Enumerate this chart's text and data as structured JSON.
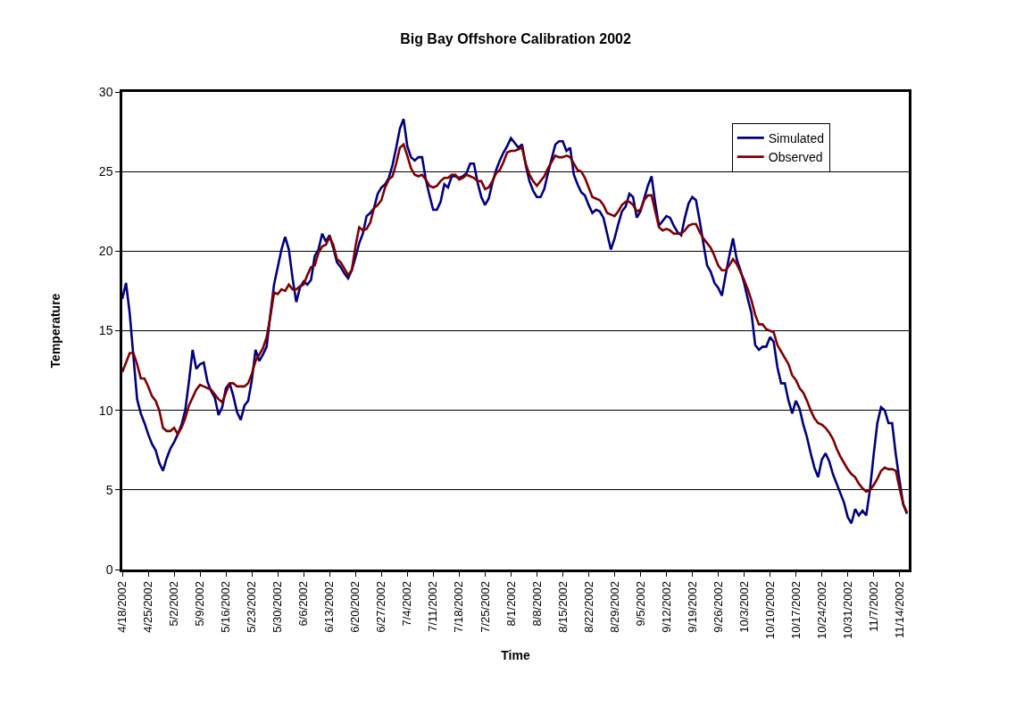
{
  "chart_data": {
    "type": "line",
    "title": "Big Bay Offshore Calibration 2002",
    "xlabel": "Time",
    "ylabel": "Temperature",
    "x": [
      "2002-04-18",
      "2002-04-19",
      "2002-04-20",
      "2002-04-21",
      "2002-04-22",
      "2002-04-23",
      "2002-04-24",
      "2002-04-25",
      "2002-04-26",
      "2002-04-27",
      "2002-04-28",
      "2002-04-29",
      "2002-04-30",
      "2002-05-01",
      "2002-05-02",
      "2002-05-03",
      "2002-05-04",
      "2002-05-05",
      "2002-05-06",
      "2002-05-07",
      "2002-05-08",
      "2002-05-09",
      "2002-05-10",
      "2002-05-11",
      "2002-05-12",
      "2002-05-13",
      "2002-05-14",
      "2002-05-15",
      "2002-05-16",
      "2002-05-17",
      "2002-05-18",
      "2002-05-19",
      "2002-05-20",
      "2002-05-21",
      "2002-05-22",
      "2002-05-23",
      "2002-05-24",
      "2002-05-25",
      "2002-05-26",
      "2002-05-27",
      "2002-05-28",
      "2002-05-29",
      "2002-05-30",
      "2002-05-31",
      "2002-06-01",
      "2002-06-02",
      "2002-06-03",
      "2002-06-04",
      "2002-06-05",
      "2002-06-06",
      "2002-06-07",
      "2002-06-08",
      "2002-06-09",
      "2002-06-10",
      "2002-06-11",
      "2002-06-12",
      "2002-06-13",
      "2002-06-14",
      "2002-06-15",
      "2002-06-16",
      "2002-06-17",
      "2002-06-18",
      "2002-06-19",
      "2002-06-20",
      "2002-06-21",
      "2002-06-22",
      "2002-06-23",
      "2002-06-24",
      "2002-06-25",
      "2002-06-26",
      "2002-06-27",
      "2002-06-28",
      "2002-06-29",
      "2002-06-30",
      "2002-07-01",
      "2002-07-02",
      "2002-07-03",
      "2002-07-04",
      "2002-07-05",
      "2002-07-06",
      "2002-07-07",
      "2002-07-08",
      "2002-07-09",
      "2002-07-10",
      "2002-07-11",
      "2002-07-12",
      "2002-07-13",
      "2002-07-14",
      "2002-07-15",
      "2002-07-16",
      "2002-07-17",
      "2002-07-18",
      "2002-07-19",
      "2002-07-20",
      "2002-07-21",
      "2002-07-22",
      "2002-07-23",
      "2002-07-24",
      "2002-07-25",
      "2002-07-26",
      "2002-07-27",
      "2002-07-28",
      "2002-07-29",
      "2002-07-30",
      "2002-07-31",
      "2002-08-01",
      "2002-08-02",
      "2002-08-03",
      "2002-08-04",
      "2002-08-05",
      "2002-08-06",
      "2002-08-07",
      "2002-08-08",
      "2002-08-09",
      "2002-08-10",
      "2002-08-11",
      "2002-08-12",
      "2002-08-13",
      "2002-08-14",
      "2002-08-15",
      "2002-08-16",
      "2002-08-17",
      "2002-08-18",
      "2002-08-19",
      "2002-08-20",
      "2002-08-21",
      "2002-08-22",
      "2002-08-23",
      "2002-08-24",
      "2002-08-25",
      "2002-08-26",
      "2002-08-27",
      "2002-08-28",
      "2002-08-29",
      "2002-08-30",
      "2002-08-31",
      "2002-09-01",
      "2002-09-02",
      "2002-09-03",
      "2002-09-04",
      "2002-09-05",
      "2002-09-06",
      "2002-09-07",
      "2002-09-08",
      "2002-09-09",
      "2002-09-10",
      "2002-09-11",
      "2002-09-12",
      "2002-09-13",
      "2002-09-14",
      "2002-09-15",
      "2002-09-16",
      "2002-09-17",
      "2002-09-18",
      "2002-09-19",
      "2002-09-20",
      "2002-09-21",
      "2002-09-22",
      "2002-09-23",
      "2002-09-24",
      "2002-09-25",
      "2002-09-26",
      "2002-09-27",
      "2002-09-28",
      "2002-09-29",
      "2002-09-30",
      "2002-10-01",
      "2002-10-02",
      "2002-10-03",
      "2002-10-04",
      "2002-10-05",
      "2002-10-06",
      "2002-10-07",
      "2002-10-08",
      "2002-10-09",
      "2002-10-10",
      "2002-10-11",
      "2002-10-12",
      "2002-10-13",
      "2002-10-14",
      "2002-10-15",
      "2002-10-16",
      "2002-10-17",
      "2002-10-18",
      "2002-10-19",
      "2002-10-20",
      "2002-10-21",
      "2002-10-22",
      "2002-10-23",
      "2002-10-24",
      "2002-10-25",
      "2002-10-26",
      "2002-10-27",
      "2002-10-28",
      "2002-10-29",
      "2002-10-30",
      "2002-10-31",
      "2002-11-01",
      "2002-11-02",
      "2002-11-03",
      "2002-11-04",
      "2002-11-05",
      "2002-11-06",
      "2002-11-07",
      "2002-11-08",
      "2002-11-09",
      "2002-11-10",
      "2002-11-11",
      "2002-11-12",
      "2002-11-13",
      "2002-11-14",
      "2002-11-15",
      "2002-11-16"
    ],
    "series": [
      {
        "name": "Simulated",
        "color": "#000080",
        "values": [
          17.0,
          18.0,
          16.1,
          13.4,
          10.7,
          9.8,
          9.2,
          8.5,
          7.9,
          7.5,
          6.7,
          6.2,
          7.0,
          7.6,
          8.0,
          8.5,
          9.1,
          10.0,
          11.8,
          13.8,
          12.6,
          12.9,
          13.0,
          11.8,
          11.2,
          10.8,
          9.7,
          10.2,
          11.4,
          11.7,
          10.9,
          9.9,
          9.4,
          10.3,
          10.6,
          11.9,
          13.8,
          13.1,
          13.5,
          14.0,
          16.0,
          17.9,
          19.0,
          20.1,
          20.9,
          20.1,
          18.3,
          16.8,
          17.7,
          18.1,
          17.9,
          18.2,
          19.7,
          20.1,
          21.1,
          20.6,
          21.0,
          20.2,
          19.3,
          19.0,
          18.6,
          18.3,
          18.8,
          19.6,
          20.5,
          21.1,
          22.2,
          22.4,
          22.7,
          23.6,
          24.0,
          24.2,
          24.6,
          25.4,
          26.5,
          27.7,
          28.3,
          26.6,
          25.9,
          25.7,
          25.9,
          25.9,
          24.5,
          23.5,
          22.6,
          22.6,
          23.1,
          24.2,
          24.0,
          24.7,
          24.7,
          24.6,
          24.7,
          24.9,
          25.5,
          25.5,
          24.3,
          23.4,
          22.9,
          23.3,
          24.3,
          25.1,
          25.7,
          26.2,
          26.6,
          27.1,
          26.8,
          26.5,
          26.7,
          25.4,
          24.4,
          23.8,
          23.4,
          23.4,
          23.9,
          24.9,
          25.8,
          26.7,
          26.9,
          26.9,
          26.3,
          26.5,
          24.8,
          24.2,
          23.7,
          23.5,
          22.9,
          22.4,
          22.6,
          22.5,
          22.1,
          21.1,
          20.1,
          20.8,
          21.7,
          22.5,
          22.8,
          23.6,
          23.4,
          22.1,
          22.5,
          23.3,
          24.1,
          24.7,
          23.0,
          21.6,
          21.9,
          22.2,
          22.1,
          21.6,
          21.2,
          21.0,
          22.1,
          23.0,
          23.4,
          23.2,
          21.9,
          20.5,
          19.1,
          18.7,
          18.0,
          17.7,
          17.2,
          18.5,
          19.7,
          20.8,
          19.5,
          18.8,
          18.0,
          17.0,
          16.1,
          14.1,
          13.8,
          14.0,
          14.0,
          14.6,
          14.3,
          12.7,
          11.7,
          11.7,
          10.6,
          9.8,
          10.6,
          10.1,
          9.1,
          8.3,
          7.3,
          6.4,
          5.8,
          6.9,
          7.3,
          6.8,
          6.0,
          5.4,
          4.8,
          4.2,
          3.3,
          2.9,
          3.8,
          3.4,
          3.7,
          3.4,
          5.0,
          7.2,
          9.2,
          10.2,
          10.0,
          9.2,
          9.2,
          7.2,
          5.6,
          4.1,
          3.5
        ]
      },
      {
        "name": "Observed",
        "color": "#800000",
        "values": [
          12.4,
          13.0,
          13.6,
          13.6,
          12.9,
          12.0,
          12.0,
          11.5,
          10.9,
          10.6,
          10.0,
          8.9,
          8.7,
          8.7,
          8.9,
          8.5,
          8.9,
          9.5,
          10.3,
          10.8,
          11.3,
          11.6,
          11.5,
          11.4,
          11.3,
          11.0,
          10.7,
          10.5,
          11.1,
          11.7,
          11.7,
          11.5,
          11.5,
          11.5,
          11.7,
          12.3,
          13.1,
          13.5,
          13.9,
          14.6,
          15.9,
          17.4,
          17.3,
          17.6,
          17.5,
          17.9,
          17.6,
          17.6,
          17.8,
          17.9,
          18.5,
          19.0,
          19.1,
          19.9,
          20.3,
          20.4,
          20.9,
          20.4,
          19.5,
          19.3,
          18.9,
          18.5,
          18.8,
          20.3,
          21.5,
          21.3,
          21.4,
          21.8,
          22.7,
          22.9,
          23.2,
          24.0,
          24.5,
          24.7,
          25.5,
          26.5,
          26.7,
          26.0,
          25.2,
          24.8,
          24.7,
          24.8,
          24.5,
          24.1,
          24.0,
          24.1,
          24.4,
          24.6,
          24.6,
          24.8,
          24.8,
          24.5,
          24.6,
          24.8,
          24.7,
          24.6,
          24.4,
          24.4,
          23.9,
          24.0,
          24.4,
          24.9,
          25.1,
          25.6,
          26.2,
          26.3,
          26.3,
          26.4,
          26.5,
          25.5,
          24.8,
          24.4,
          24.1,
          24.4,
          24.7,
          25.2,
          25.6,
          26.0,
          25.9,
          25.9,
          26.0,
          25.9,
          25.5,
          25.1,
          25.0,
          24.6,
          24.0,
          23.4,
          23.3,
          23.2,
          22.9,
          22.4,
          22.3,
          22.2,
          22.5,
          22.9,
          23.1,
          23.1,
          22.9,
          22.5,
          22.6,
          23.2,
          23.5,
          23.5,
          22.5,
          21.5,
          21.3,
          21.4,
          21.3,
          21.1,
          21.1,
          21.1,
          21.3,
          21.6,
          21.7,
          21.7,
          21.2,
          20.8,
          20.5,
          20.2,
          19.7,
          19.1,
          18.8,
          18.8,
          19.1,
          19.5,
          19.2,
          18.7,
          18.2,
          17.6,
          16.9,
          16.0,
          15.4,
          15.4,
          15.1,
          15.0,
          14.9,
          14.1,
          13.7,
          13.3,
          12.9,
          12.2,
          11.9,
          11.4,
          11.1,
          10.6,
          10.0,
          9.5,
          9.2,
          9.1,
          8.9,
          8.6,
          8.2,
          7.6,
          7.1,
          6.7,
          6.3,
          6.0,
          5.8,
          5.4,
          5.1,
          4.9,
          5.0,
          5.3,
          5.7,
          6.2,
          6.4,
          6.3,
          6.3,
          6.2,
          5.1,
          4.1,
          3.6
        ]
      }
    ],
    "xlim": [
      "2002-04-18",
      "2002-11-16T12:00"
    ],
    "xticks": [
      {
        "value": "2002-04-18",
        "label": "4/18/2002"
      },
      {
        "value": "2002-04-25",
        "label": "4/25/2002"
      },
      {
        "value": "2002-05-02",
        "label": "5/2/2002"
      },
      {
        "value": "2002-05-09",
        "label": "5/9/2002"
      },
      {
        "value": "2002-05-16",
        "label": "5/16/2002"
      },
      {
        "value": "2002-05-23",
        "label": "5/23/2002"
      },
      {
        "value": "2002-05-30",
        "label": "5/30/2002"
      },
      {
        "value": "2002-06-06",
        "label": "6/6/2002"
      },
      {
        "value": "2002-06-13",
        "label": "6/13/2002"
      },
      {
        "value": "2002-06-20",
        "label": "6/20/2002"
      },
      {
        "value": "2002-06-27",
        "label": "6/27/2002"
      },
      {
        "value": "2002-07-04",
        "label": "7/4/2002"
      },
      {
        "value": "2002-07-11",
        "label": "7/11/2002"
      },
      {
        "value": "2002-07-18",
        "label": "7/18/2002"
      },
      {
        "value": "2002-07-25",
        "label": "7/25/2002"
      },
      {
        "value": "2002-08-01",
        "label": "8/1/2002"
      },
      {
        "value": "2002-08-08",
        "label": "8/8/2002"
      },
      {
        "value": "2002-08-15",
        "label": "8/15/2002"
      },
      {
        "value": "2002-08-22",
        "label": "8/22/2002"
      },
      {
        "value": "2002-08-29",
        "label": "8/29/2002"
      },
      {
        "value": "2002-09-05",
        "label": "9/5/2002"
      },
      {
        "value": "2002-09-12",
        "label": "9/12/2002"
      },
      {
        "value": "2002-09-19",
        "label": "9/19/2002"
      },
      {
        "value": "2002-09-26",
        "label": "9/26/2002"
      },
      {
        "value": "2002-10-03",
        "label": "10/3/2002"
      },
      {
        "value": "2002-10-10",
        "label": "10/10/2002"
      },
      {
        "value": "2002-10-17",
        "label": "10/17/2002"
      },
      {
        "value": "2002-10-24",
        "label": "10/24/2002"
      },
      {
        "value": "2002-10-31",
        "label": "10/31/2002"
      },
      {
        "value": "2002-11-07",
        "label": "11/7/2002"
      },
      {
        "value": "2002-11-14",
        "label": "11/14/2002"
      }
    ],
    "ylim": [
      0,
      30
    ],
    "yticks": [
      0,
      5,
      10,
      15,
      20,
      25,
      30
    ],
    "grid": "y",
    "legend": "top right",
    "marker": "none",
    "line_style": "solid"
  }
}
